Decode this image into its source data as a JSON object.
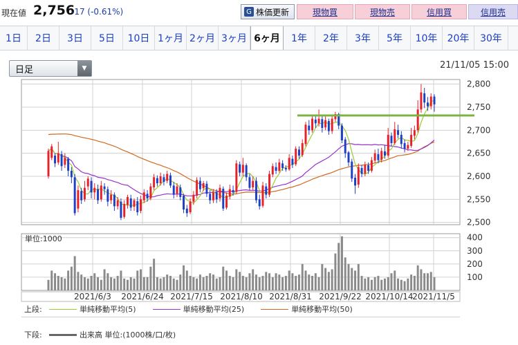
{
  "header": {
    "price_label": "現在値",
    "price_value": "2,756",
    "price_change": "-17 (-0.61%)",
    "update_button": "株価更新",
    "buttons": [
      "現物買",
      "現物売",
      "信用買",
      "信用売"
    ]
  },
  "tabs": [
    "1日",
    "2日",
    "3日",
    "5日",
    "10日",
    "1ヶ月",
    "2ヶ月",
    "3ヶ月",
    "6ヶ月",
    "1年",
    "2年",
    "3年",
    "5年",
    "10年",
    "20年",
    "30年"
  ],
  "active_tab": "6ヶ月",
  "selector": {
    "value": "日足"
  },
  "timestamp": "21/11/05 15:00",
  "legend": {
    "upper_label": "上段:",
    "lower_label": "下段:",
    "items": [
      {
        "name": "単純移動平均(5)",
        "color": "#9acd32"
      },
      {
        "name": "単純移動平均(25)",
        "color": "#9932cc"
      },
      {
        "name": "単純移動平均(50)",
        "color": "#d2691e"
      }
    ],
    "volume_item": {
      "name": "出来高 単位:(1000株/口/枚)",
      "color": "#666666"
    }
  },
  "chart_data": {
    "type": "candlestick",
    "x_tick_labels": [
      "2021/6/3",
      "2021/6/24",
      "2021/7/15",
      "2021/8/10",
      "2021/8/31",
      "2021/9/22",
      "2021/10/14",
      "2021/11/5"
    ],
    "price_axis": {
      "ticks": [
        2500,
        2550,
        2600,
        2650,
        2700,
        2750,
        2800
      ],
      "range": [
        2495,
        2810
      ]
    },
    "resistance_line": 2732,
    "up_color": "#e8202a",
    "down_color": "#1f3fc4",
    "candles": [
      [
        2600,
        2655,
        2595,
        2660
      ],
      [
        2640,
        2665,
        2635,
        2670
      ],
      [
        2645,
        2628,
        2620,
        2650
      ],
      [
        2630,
        2650,
        2625,
        2675
      ],
      [
        2648,
        2622,
        2612,
        2655
      ],
      [
        2625,
        2640,
        2618,
        2650
      ],
      [
        2638,
        2612,
        2600,
        2642
      ],
      [
        2612,
        2598,
        2585,
        2620
      ],
      [
        2598,
        2520,
        2515,
        2605
      ],
      [
        2530,
        2570,
        2522,
        2580
      ],
      [
        2568,
        2548,
        2540,
        2575
      ],
      [
        2550,
        2575,
        2545,
        2590
      ],
      [
        2578,
        2595,
        2570,
        2600
      ],
      [
        2590,
        2565,
        2552,
        2598
      ],
      [
        2565,
        2575,
        2550,
        2585
      ],
      [
        2572,
        2548,
        2540,
        2582
      ],
      [
        2550,
        2580,
        2545,
        2590
      ],
      [
        2578,
        2572,
        2560,
        2585
      ],
      [
        2572,
        2545,
        2535,
        2578
      ],
      [
        2548,
        2560,
        2540,
        2570
      ],
      [
        2560,
        2535,
        2525,
        2565
      ],
      [
        2535,
        2548,
        2528,
        2555
      ],
      [
        2545,
        2510,
        2505,
        2552
      ],
      [
        2512,
        2540,
        2508,
        2548
      ],
      [
        2538,
        2555,
        2530,
        2560
      ],
      [
        2552,
        2532,
        2525,
        2560
      ],
      [
        2534,
        2548,
        2525,
        2552
      ],
      [
        2546,
        2522,
        2515,
        2555
      ],
      [
        2525,
        2550,
        2520,
        2558
      ],
      [
        2548,
        2565,
        2542,
        2572
      ],
      [
        2562,
        2552,
        2545,
        2570
      ],
      [
        2552,
        2578,
        2548,
        2585
      ],
      [
        2576,
        2598,
        2570,
        2605
      ],
      [
        2596,
        2585,
        2578,
        2602
      ],
      [
        2585,
        2600,
        2580,
        2608
      ],
      [
        2598,
        2588,
        2580,
        2605
      ],
      [
        2590,
        2605,
        2585,
        2612
      ],
      [
        2602,
        2580,
        2575,
        2608
      ],
      [
        2580,
        2560,
        2552,
        2588
      ],
      [
        2562,
        2578,
        2555,
        2585
      ],
      [
        2576,
        2555,
        2548,
        2582
      ],
      [
        2558,
        2528,
        2520,
        2562
      ],
      [
        2530,
        2520,
        2512,
        2538
      ],
      [
        2522,
        2545,
        2518,
        2552
      ],
      [
        2545,
        2560,
        2538,
        2568
      ],
      [
        2558,
        2592,
        2552,
        2598
      ],
      [
        2590,
        2572,
        2565,
        2598
      ],
      [
        2574,
        2585,
        2568,
        2590
      ],
      [
        2584,
        2562,
        2555,
        2590
      ],
      [
        2562,
        2548,
        2540,
        2570
      ],
      [
        2548,
        2565,
        2542,
        2572
      ],
      [
        2565,
        2550,
        2542,
        2572
      ],
      [
        2552,
        2575,
        2545,
        2582
      ],
      [
        2573,
        2530,
        2525,
        2578
      ],
      [
        2532,
        2558,
        2528,
        2565
      ],
      [
        2556,
        2572,
        2550,
        2582
      ],
      [
        2570,
        2565,
        2558,
        2580
      ],
      [
        2566,
        2628,
        2562,
        2635
      ],
      [
        2626,
        2608,
        2600,
        2632
      ],
      [
        2608,
        2625,
        2600,
        2640
      ],
      [
        2624,
        2598,
        2590,
        2628
      ],
      [
        2598,
        2575,
        2570,
        2605
      ],
      [
        2576,
        2590,
        2570,
        2600
      ],
      [
        2590,
        2548,
        2542,
        2598
      ],
      [
        2550,
        2535,
        2528,
        2560
      ],
      [
        2536,
        2580,
        2532,
        2588
      ],
      [
        2578,
        2560,
        2552,
        2585
      ],
      [
        2560,
        2605,
        2555,
        2612
      ],
      [
        2604,
        2622,
        2598,
        2628
      ],
      [
        2620,
        2612,
        2605,
        2630
      ],
      [
        2612,
        2630,
        2608,
        2638
      ],
      [
        2628,
        2618,
        2612,
        2635
      ],
      [
        2618,
        2615,
        2610,
        2624
      ],
      [
        2615,
        2640,
        2612,
        2648
      ],
      [
        2638,
        2625,
        2618,
        2645
      ],
      [
        2626,
        2660,
        2622,
        2665
      ],
      [
        2658,
        2645,
        2638,
        2665
      ],
      [
        2646,
        2672,
        2642,
        2680
      ],
      [
        2670,
        2712,
        2665,
        2718
      ],
      [
        2710,
        2700,
        2690,
        2722
      ],
      [
        2700,
        2725,
        2695,
        2730
      ],
      [
        2723,
        2715,
        2705,
        2732
      ],
      [
        2715,
        2725,
        2708,
        2745
      ],
      [
        2724,
        2705,
        2695,
        2730
      ],
      [
        2706,
        2722,
        2700,
        2730
      ],
      [
        2720,
        2698,
        2690,
        2725
      ],
      [
        2698,
        2725,
        2692,
        2732
      ],
      [
        2724,
        2735,
        2718,
        2740
      ],
      [
        2735,
        2710,
        2702,
        2738
      ],
      [
        2710,
        2678,
        2672,
        2715
      ],
      [
        2680,
        2650,
        2640,
        2685
      ],
      [
        2652,
        2630,
        2622,
        2655
      ],
      [
        2632,
        2595,
        2588,
        2638
      ],
      [
        2597,
        2580,
        2562,
        2605
      ],
      [
        2582,
        2620,
        2575,
        2628
      ],
      [
        2618,
        2605,
        2598,
        2625
      ],
      [
        2606,
        2625,
        2600,
        2632
      ],
      [
        2624,
        2612,
        2605,
        2630
      ],
      [
        2612,
        2635,
        2608,
        2642
      ],
      [
        2634,
        2650,
        2628,
        2658
      ],
      [
        2648,
        2635,
        2628,
        2660
      ],
      [
        2636,
        2655,
        2630,
        2662
      ],
      [
        2654,
        2645,
        2638,
        2668
      ],
      [
        2645,
        2690,
        2640,
        2705
      ],
      [
        2688,
        2672,
        2665,
        2695
      ],
      [
        2672,
        2702,
        2668,
        2718
      ],
      [
        2700,
        2690,
        2682,
        2712
      ],
      [
        2690,
        2670,
        2660,
        2698
      ],
      [
        2672,
        2660,
        2652,
        2680
      ],
      [
        2660,
        2668,
        2655,
        2675
      ],
      [
        2666,
        2690,
        2662,
        2705
      ],
      [
        2688,
        2700,
        2680,
        2710
      ],
      [
        2700,
        2745,
        2695,
        2765
      ],
      [
        2745,
        2782,
        2738,
        2800
      ],
      [
        2780,
        2760,
        2748,
        2792
      ],
      [
        2760,
        2752,
        2742,
        2772
      ],
      [
        2752,
        2773,
        2745,
        2780
      ],
      [
        2773,
        2756,
        2740,
        2778
      ]
    ],
    "volume_axis": {
      "ticks": [
        100,
        200,
        300,
        400
      ],
      "range": [
        0,
        430
      ],
      "label": "単位:1000"
    },
    "volume": [
      80,
      150,
      130,
      110,
      100,
      90,
      150,
      180,
      260,
      140,
      120,
      100,
      90,
      110,
      130,
      100,
      80,
      160,
      130,
      100,
      90,
      110,
      150,
      90,
      80,
      100,
      90,
      150,
      160,
      100,
      100,
      180,
      240,
      100,
      90,
      100,
      120,
      110,
      90,
      80,
      120,
      190,
      150,
      110,
      100,
      90,
      120,
      100,
      110,
      130,
      120,
      90,
      100,
      180,
      150,
      110,
      100,
      160,
      140,
      110,
      100,
      130,
      160,
      120,
      100,
      110,
      140,
      130,
      100,
      130,
      120,
      100,
      110,
      150,
      130,
      110,
      120,
      200,
      150,
      120,
      110,
      130,
      100,
      200,
      170,
      140,
      160,
      280,
      360,
      410,
      250,
      200,
      170,
      150,
      200,
      110,
      90,
      100,
      80,
      100,
      110,
      80,
      90,
      100,
      130,
      150,
      90,
      80,
      70,
      90,
      120,
      110,
      190,
      160,
      130,
      130,
      140,
      100
    ],
    "sma5_color": "#9acd32",
    "sma25_color": "#9932cc",
    "sma50_color": "#d2691e"
  }
}
